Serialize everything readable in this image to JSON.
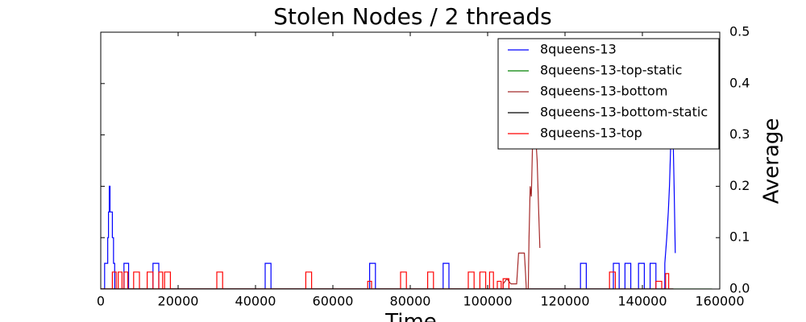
{
  "chart_data": {
    "type": "line",
    "title": "Stolen Nodes / 2 threads",
    "x_label": "Time",
    "y_label": "Average",
    "xlim": [
      0,
      160000
    ],
    "ylim": [
      0,
      0.5
    ],
    "xticks": [
      0,
      20000,
      40000,
      60000,
      80000,
      100000,
      120000,
      140000,
      160000
    ],
    "yticks": [
      {
        "value": 0,
        "label": "0.0"
      },
      0.1,
      0.2,
      0.3,
      0.4,
      0.5
    ],
    "y_axis_side": "right",
    "legend": "upper right",
    "series": [
      {
        "name": "8queens-13",
        "color": "#0000ff",
        "x": [
          0,
          1000,
          1000,
          1800,
          1800,
          2000,
          2000,
          2200,
          2200,
          2400,
          2400,
          3000,
          3000,
          3300,
          3300,
          3600,
          3600,
          6000,
          6000,
          7200,
          7200,
          13500,
          13500,
          15000,
          15000,
          42500,
          42500,
          44000,
          44000,
          69500,
          69500,
          71000,
          71000,
          88500,
          88500,
          90000,
          90000,
          124000,
          124000,
          125500,
          125500,
          132500,
          132500,
          134000,
          134000,
          135500,
          135500,
          137000,
          137000,
          139000,
          139000,
          140500,
          140500,
          142000,
          142000,
          143500,
          143500,
          145800,
          145800,
          146300,
          146700,
          147000,
          147400,
          147800,
          148200,
          148500
        ],
        "values": [
          0,
          0,
          0.05,
          0.05,
          0.1,
          0.1,
          0.15,
          0.15,
          0.2,
          0.2,
          0.15,
          0.15,
          0.1,
          0.1,
          0.05,
          0.05,
          0,
          0,
          0.05,
          0.05,
          0,
          0,
          0.05,
          0.05,
          0,
          0,
          0.05,
          0.05,
          0,
          0,
          0.05,
          0.05,
          0,
          0,
          0.05,
          0.05,
          0,
          0,
          0.05,
          0.05,
          0,
          0,
          0.05,
          0.05,
          0,
          0,
          0.05,
          0.05,
          0,
          0,
          0.05,
          0.05,
          0,
          0,
          0.05,
          0.05,
          0,
          0,
          0.05,
          0.1,
          0.15,
          0.2,
          0.3,
          0.35,
          0.2,
          0.07
        ]
      },
      {
        "name": "8queens-13-top-static",
        "color": "#008000",
        "x": [
          0,
          158000
        ],
        "values": [
          0,
          0
        ]
      },
      {
        "name": "8queens-13-bottom",
        "color": "#a52a2a",
        "x": [
          0,
          104000,
          104000,
          105000,
          106000,
          107500,
          108000,
          109500,
          109800,
          110000,
          110500,
          110700,
          111000,
          111300,
          111600,
          112000,
          112400,
          112800,
          113200,
          113500
        ],
        "values": [
          0,
          0,
          0.01,
          0.02,
          0.01,
          0.01,
          0.07,
          0.07,
          0.03,
          0,
          0,
          0.1,
          0.2,
          0.18,
          0.28,
          0.35,
          0.3,
          0.25,
          0.15,
          0.08
        ]
      },
      {
        "name": "8queens-13-bottom-static",
        "color": "#000000",
        "x": [
          0,
          148000
        ],
        "values": [
          0,
          0
        ]
      },
      {
        "name": "8queens-13-top",
        "color": "#ff0000",
        "x": [
          0,
          3000,
          3000,
          4000,
          4000,
          4500,
          4500,
          5500,
          5500,
          6000,
          6000,
          7000,
          7000,
          8500,
          8500,
          10000,
          10000,
          12000,
          12000,
          13500,
          13500,
          15000,
          15000,
          16000,
          16000,
          16500,
          16500,
          18000,
          18000,
          30000,
          30000,
          31500,
          31500,
          53000,
          53000,
          54500,
          54500,
          69000,
          69000,
          70000,
          70000,
          77500,
          77500,
          79000,
          79000,
          84500,
          84500,
          86000,
          86000,
          95000,
          95000,
          96500,
          96500,
          98000,
          98000,
          99500,
          99500,
          100500,
          100500,
          101500,
          101500,
          102500,
          102500,
          103500,
          103500,
          104000,
          104000,
          105500,
          105500,
          131500,
          131500,
          133000,
          133000,
          143500,
          143500,
          145000,
          145000,
          146000,
          146000,
          146800,
          146800,
          148000
        ],
        "values": [
          0,
          0,
          0.033,
          0.033,
          0,
          0,
          0.033,
          0.033,
          0,
          0,
          0.033,
          0.033,
          0,
          0,
          0.033,
          0.033,
          0,
          0,
          0.033,
          0.033,
          0,
          0,
          0.033,
          0.033,
          0,
          0,
          0.033,
          0.033,
          0,
          0,
          0.033,
          0.033,
          0,
          0,
          0.033,
          0.033,
          0,
          0,
          0.015,
          0.015,
          0,
          0,
          0.033,
          0.033,
          0,
          0,
          0.033,
          0.033,
          0,
          0,
          0.033,
          0.033,
          0,
          0,
          0.033,
          0.033,
          0,
          0,
          0.033,
          0.033,
          0,
          0,
          0.015,
          0.015,
          0,
          0,
          0.02,
          0.02,
          0,
          0,
          0.033,
          0.033,
          0,
          0,
          0.015,
          0.015,
          0,
          0,
          0.03,
          0.03,
          0,
          0
        ]
      }
    ]
  }
}
